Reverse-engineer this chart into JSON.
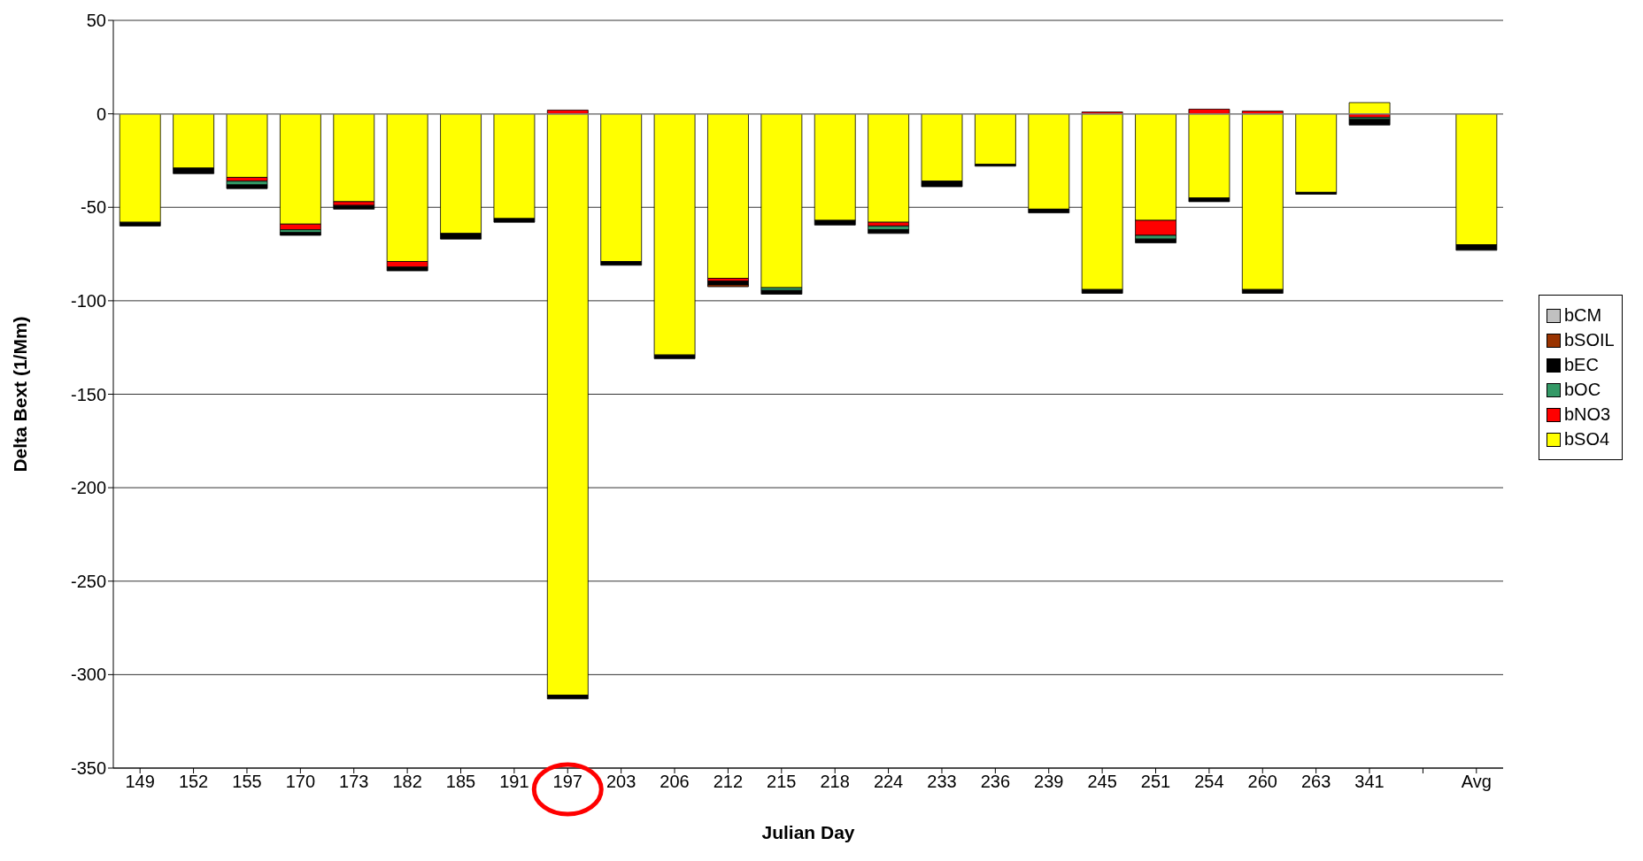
{
  "chart_data": {
    "type": "bar",
    "stacked": true,
    "xlabel": "Julian Day",
    "ylabel": "Delta Bext (1/Mm)",
    "categories": [
      "149",
      "152",
      "155",
      "170",
      "173",
      "182",
      "185",
      "191",
      "197",
      "203",
      "206",
      "212",
      "215",
      "218",
      "224",
      "233",
      "236",
      "239",
      "245",
      "251",
      "254",
      "260",
      "263",
      "341",
      null,
      "Avg"
    ],
    "series": [
      {
        "name": "bSO4",
        "color": "#ffff00",
        "values": [
          -58,
          -29,
          -34,
          -59,
          -47,
          -79,
          -64,
          -56,
          -311,
          -79,
          -129,
          -88,
          -93,
          -57,
          -58,
          -36,
          -27,
          -51,
          -94,
          -57,
          -45,
          -94,
          -42,
          6,
          null,
          -70
        ]
      },
      {
        "name": "bNO3",
        "color": "#ff0000",
        "values": [
          0,
          0,
          -2,
          -3,
          -2,
          -3,
          0,
          0,
          2,
          0,
          0,
          -1.5,
          0,
          0,
          -2,
          0,
          0,
          0,
          1,
          -8,
          2.5,
          1.5,
          0,
          -2,
          null,
          0
        ]
      },
      {
        "name": "bOC",
        "color": "#339966",
        "values": [
          0,
          0,
          -2,
          -1.5,
          0,
          0,
          0,
          0,
          0,
          0,
          0,
          0,
          -1.5,
          0,
          -2,
          0,
          0,
          0,
          0,
          -2,
          0,
          0,
          0,
          -1,
          null,
          0
        ]
      },
      {
        "name": "bEC",
        "color": "#000000",
        "values": [
          -2,
          -3,
          -2,
          -1.5,
          -2,
          -2,
          -3,
          -2,
          -2,
          -2,
          -2,
          -2,
          -2,
          -2.5,
          -2,
          -3,
          -1,
          -2,
          -2,
          -2,
          -2,
          -2,
          -1,
          -3,
          null,
          -3
        ]
      },
      {
        "name": "bSOIL",
        "color": "#993300",
        "values": [
          0,
          0,
          0,
          0,
          0,
          0,
          0,
          0,
          0,
          0,
          0,
          -1,
          0,
          0,
          0,
          0,
          0,
          0,
          0,
          0,
          0,
          0,
          0,
          0,
          null,
          0
        ]
      },
      {
        "name": "bCM",
        "color": "#c0c0c0",
        "values": [
          0,
          0,
          0,
          0,
          0,
          0,
          0,
          0,
          0,
          0,
          0,
          0,
          0,
          0,
          0,
          0,
          0,
          0,
          0,
          0,
          0,
          0,
          0,
          0,
          null,
          0
        ]
      }
    ],
    "ylim": [
      -350,
      50
    ],
    "yticks": [
      -350,
      -300,
      -250,
      -200,
      -150,
      -100,
      -50,
      0,
      50
    ],
    "grid": "y",
    "legend": "right"
  }
}
